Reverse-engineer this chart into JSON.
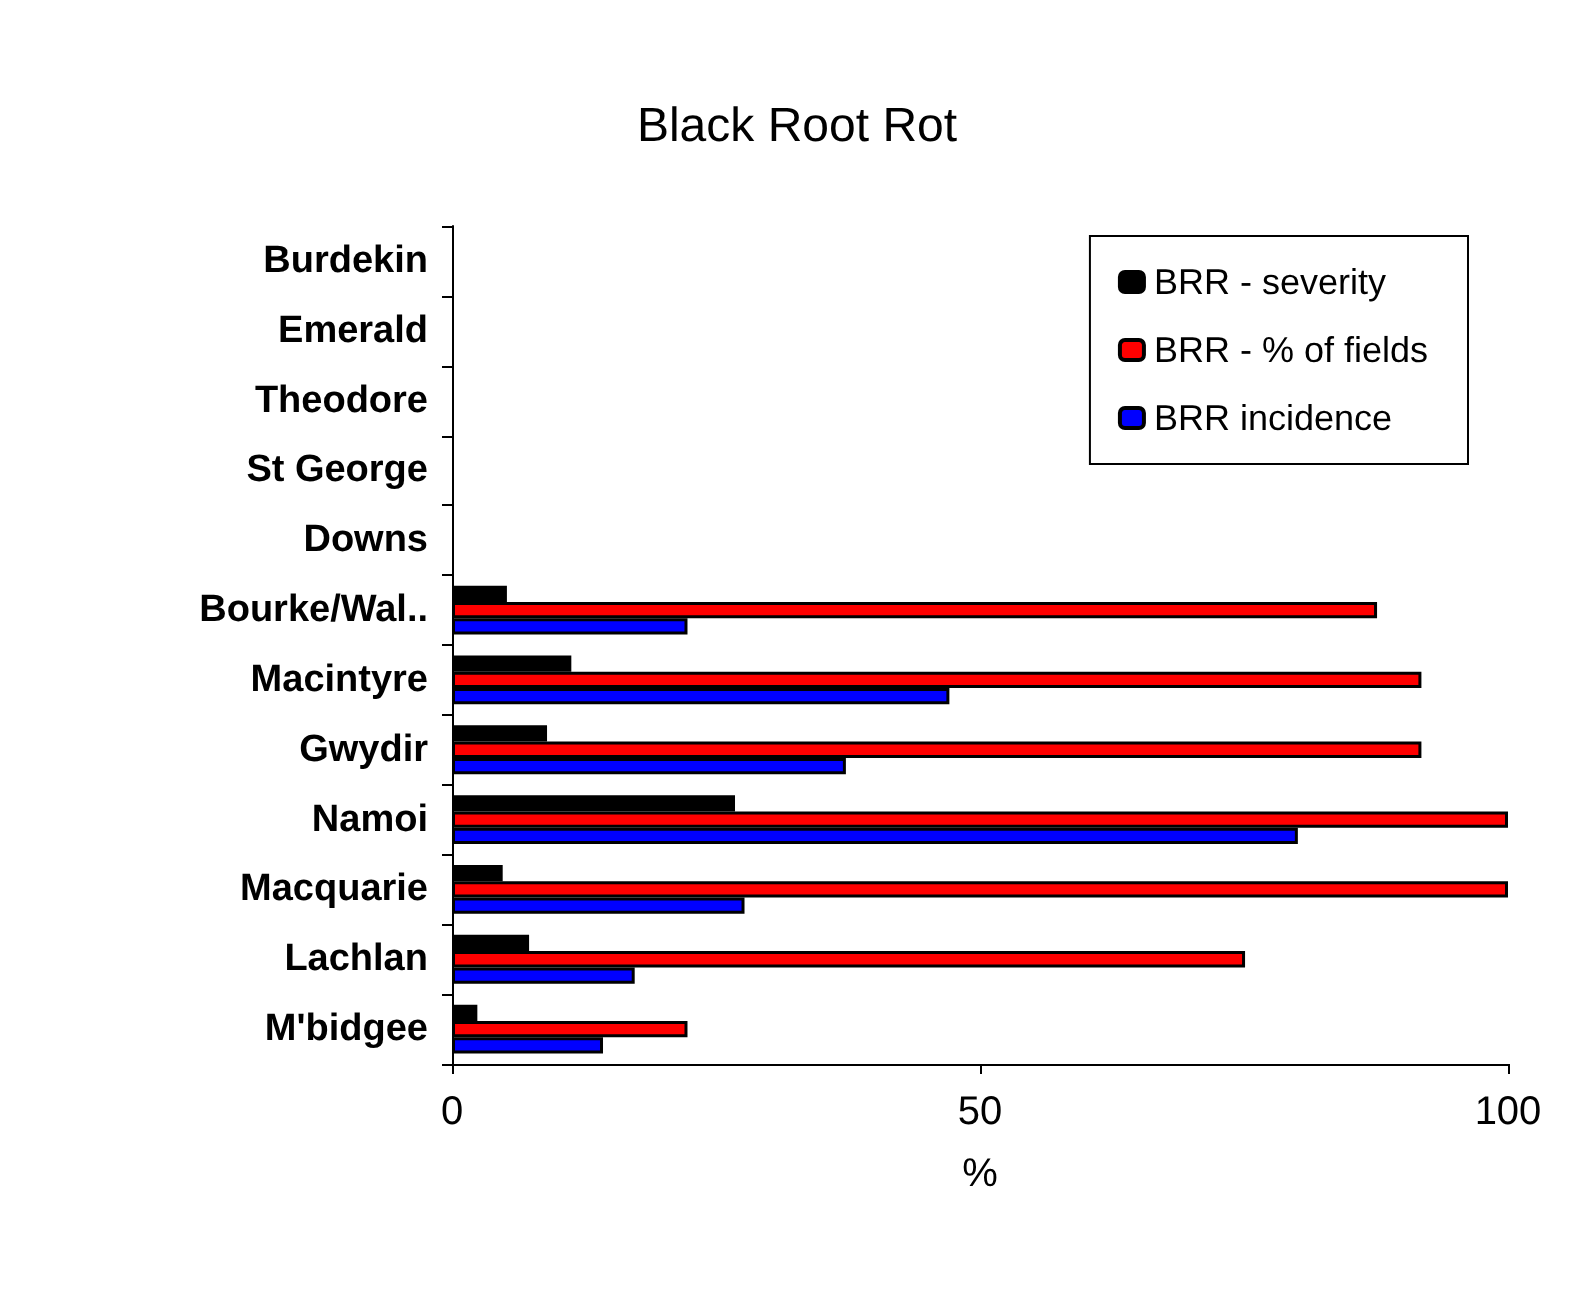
{
  "chart_data": {
    "type": "bar",
    "orientation": "horizontal",
    "title": "Black Root Rot",
    "xlabel": "%",
    "categories": [
      "Burdekin",
      "Emerald",
      "Theodore",
      "St George",
      "Downs",
      "Bourke/Wal..",
      "Macintyre",
      "Gwydir",
      "Namoi",
      "Macquarie",
      "Lachlan",
      "M'bidgee"
    ],
    "series": [
      {
        "name": "BRR - severity",
        "color": "#000000",
        "values": [
          null,
          null,
          null,
          null,
          null,
          5.2,
          11.3,
          9.0,
          26.8,
          4.8,
          7.3,
          2.4
        ]
      },
      {
        "name": "BRR - % of fields",
        "color": "#ff0000",
        "values": [
          null,
          null,
          null,
          null,
          null,
          87.6,
          91.8,
          91.8,
          100,
          100,
          75.1,
          22.3
        ]
      },
      {
        "name": "BRR incidence",
        "color": "#0000ff",
        "values": [
          null,
          null,
          null,
          null,
          null,
          22.3,
          47.1,
          37.3,
          80.1,
          27.7,
          17.3,
          14.3
        ]
      }
    ],
    "xlim": [
      0,
      100
    ],
    "xticks": [
      0,
      50,
      100
    ],
    "grid": false,
    "legend": "top right"
  }
}
